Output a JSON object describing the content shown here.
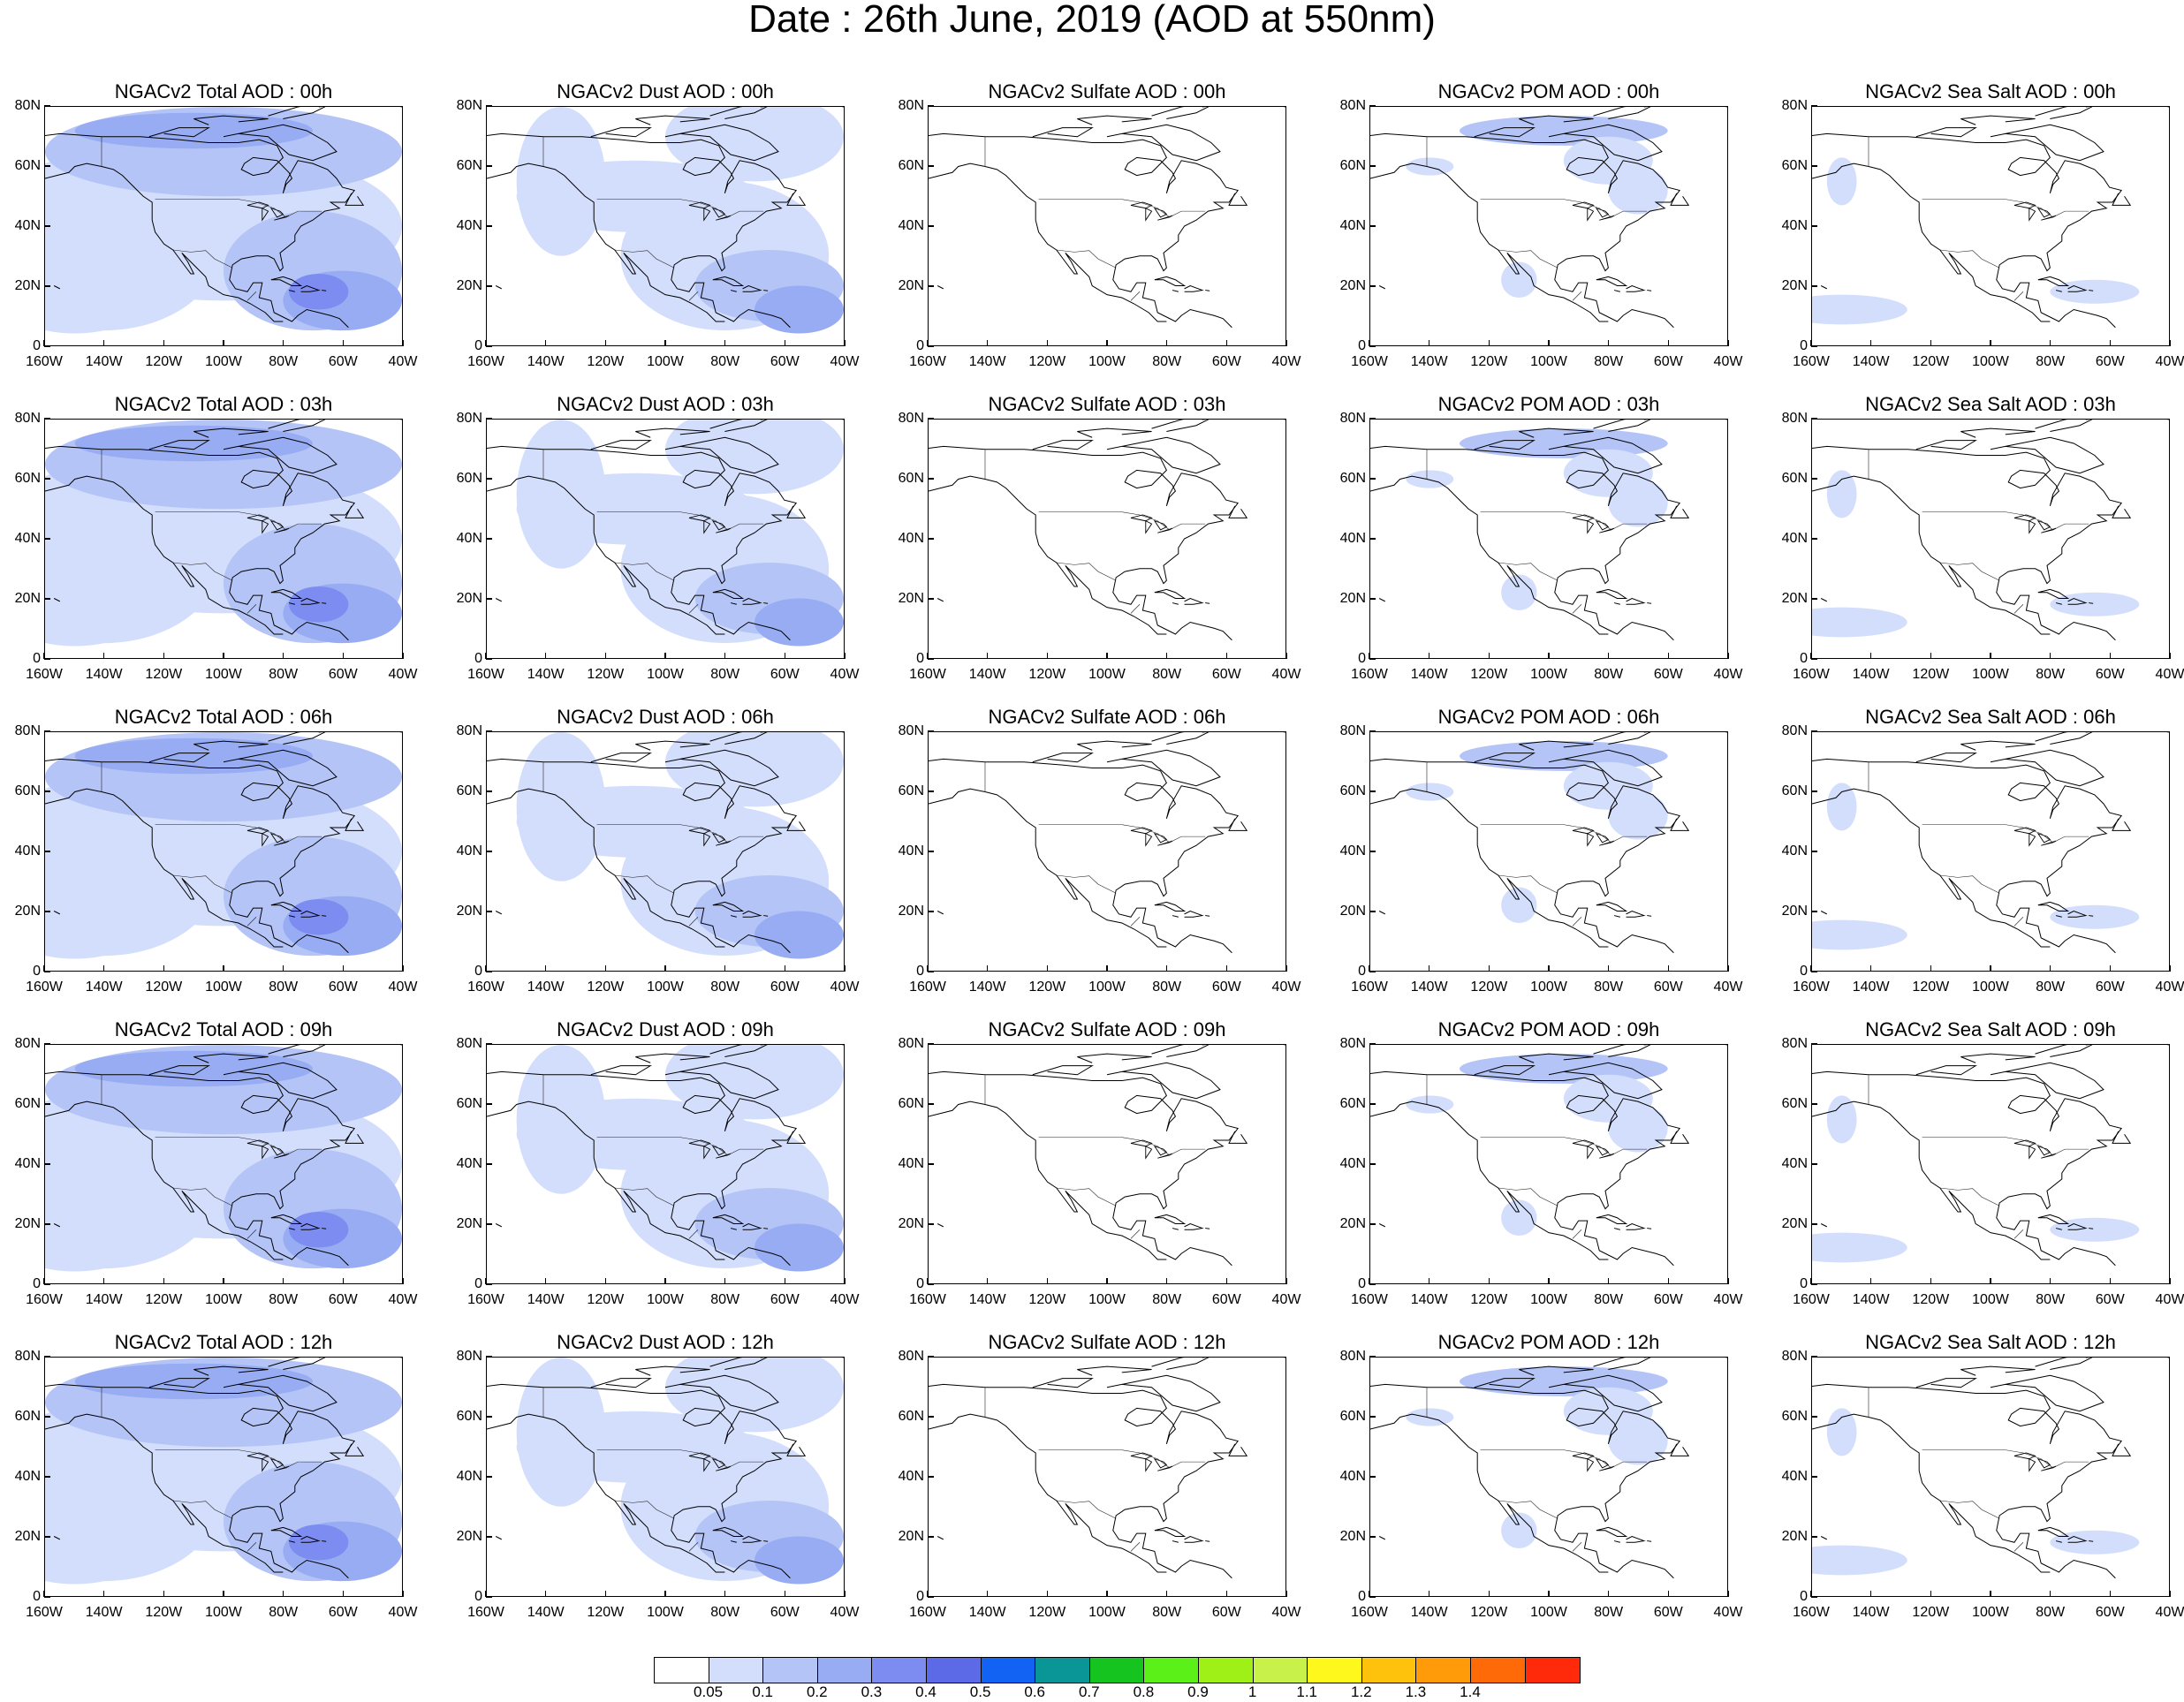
{
  "figure": {
    "title": "Date : 26th June, 2019 (AOD at 550nm)"
  },
  "panels": [
    {
      "title": "NGACv2 Total AOD : 00h"
    },
    {
      "title": "NGACv2 Dust AOD : 00h"
    },
    {
      "title": "NGACv2 Sulfate AOD : 00h"
    },
    {
      "title": "NGACv2 POM AOD : 00h"
    },
    {
      "title": "NGACv2 Sea Salt AOD : 00h"
    },
    {
      "title": "NGACv2 Total AOD : 03h"
    },
    {
      "title": "NGACv2 Dust AOD : 03h"
    },
    {
      "title": "NGACv2 Sulfate AOD : 03h"
    },
    {
      "title": "NGACv2 POM AOD : 03h"
    },
    {
      "title": "NGACv2 Sea Salt AOD : 03h"
    },
    {
      "title": "NGACv2 Total AOD : 06h"
    },
    {
      "title": "NGACv2 Dust AOD : 06h"
    },
    {
      "title": "NGACv2 Sulfate AOD : 06h"
    },
    {
      "title": "NGACv2 POM AOD : 06h"
    },
    {
      "title": "NGACv2 Sea Salt AOD : 06h"
    },
    {
      "title": "NGACv2 Total AOD : 09h"
    },
    {
      "title": "NGACv2 Dust AOD : 09h"
    },
    {
      "title": "NGACv2 Sulfate AOD : 09h"
    },
    {
      "title": "NGACv2 POM AOD : 09h"
    },
    {
      "title": "NGACv2 Sea Salt  AOD : 09h"
    },
    {
      "title": "NGACv2 Total AOD  : 12h"
    },
    {
      "title": "NGACv2 Dust AOD : 12h"
    },
    {
      "title": "NGACv2 Sulfate AOD : 12h"
    },
    {
      "title": "NGACv2 POM  AOD : 12h"
    },
    {
      "title": "NGACv2 Sea Salt  AOD : 12h"
    }
  ],
  "axes": {
    "y_ticks": [
      "80N",
      "60N",
      "40N",
      "20N",
      "0"
    ],
    "x_ticks": [
      "160W",
      "140W",
      "120W",
      "100W",
      "80W",
      "60W",
      "40W"
    ]
  },
  "colorbar": {
    "labels": [
      "0.05",
      "0.1",
      "0.2",
      "0.3",
      "0.4",
      "0.5",
      "0.6",
      "0.7",
      "0.8",
      "0.9",
      "1",
      "1.1",
      "1.2",
      "1.3",
      "1.4"
    ],
    "colors": [
      "#ffffff",
      "#d3defc",
      "#b4c4f7",
      "#98acf3",
      "#7c8cf0",
      "#5c6ae8",
      "#1262f3",
      "#0a9696",
      "#16c41f",
      "#5af018",
      "#9ff016",
      "#c8f24a",
      "#fff81c",
      "#ffc20c",
      "#ff9a08",
      "#ff6a08",
      "#ff2a0a"
    ]
  },
  "chart_data": {
    "type": "heatmap",
    "title": "Date : 26th June, 2019 (AOD at 550nm)",
    "variable": "AOD at 550nm",
    "x_range": [
      "160W",
      "40W"
    ],
    "y_range": [
      "0",
      "80N"
    ],
    "levels": [
      0.05,
      0.1,
      0.2,
      0.3,
      0.4,
      0.5,
      0.6,
      0.7,
      0.8,
      0.9,
      1,
      1.1,
      1.2,
      1.3,
      1.4
    ],
    "species": [
      "Total",
      "Dust",
      "Sulfate",
      "POM",
      "Sea Salt"
    ],
    "times": [
      "00h",
      "03h",
      "06h",
      "09h",
      "12h"
    ]
  }
}
